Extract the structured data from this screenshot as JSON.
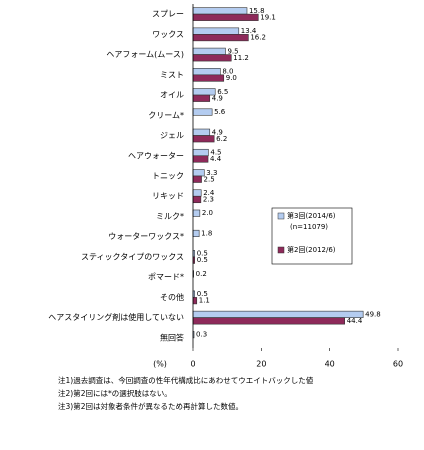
{
  "chart_data": {
    "type": "hbar",
    "categories": [
      "スプレー",
      "ワックス",
      "ヘアフォーム(ムース)",
      "ミスト",
      "オイル",
      "クリーム*",
      "ジェル",
      "ヘアウォーター",
      "トニック",
      "リキッド",
      "ミルク*",
      "ウォーターワックス*",
      "スティックタイプのワックス",
      "ポマード*",
      "その他",
      "ヘアスタイリング剤は使用していない",
      "無回答"
    ],
    "series": [
      {
        "name": "第3回(2014/6)",
        "note": "(n=11079)",
        "color": "#b4ccf0",
        "values": [
          15.8,
          13.4,
          9.5,
          8.0,
          6.5,
          5.6,
          4.9,
          4.5,
          3.3,
          2.4,
          2.0,
          1.8,
          0.5,
          0.2,
          0.5,
          49.8,
          0.3
        ],
        "value_labels": [
          "15.8",
          "13.4",
          "9.5",
          "8.0",
          "6.5",
          "5.6",
          "4.9",
          "4.5",
          "3.3",
          "2.4",
          "2.0",
          "1.8",
          "0.5",
          "0.2",
          "0.5",
          "49.8",
          "0.3"
        ]
      },
      {
        "name": "第2回(2012/6)",
        "color": "#8e2a5a",
        "values": [
          19.1,
          16.2,
          11.2,
          9.0,
          4.9,
          null,
          6.2,
          4.4,
          2.5,
          2.3,
          null,
          null,
          0.5,
          null,
          1.1,
          44.4,
          null
        ],
        "value_labels": [
          "19.1",
          "16.2",
          "11.2",
          "9.0",
          "4.9",
          null,
          "6.2",
          "4.4",
          "2.5",
          "2.3",
          null,
          null,
          "0.5",
          null,
          "1.1",
          "44.4",
          null
        ]
      }
    ],
    "xlabel": "(%)",
    "xlim": [
      0,
      60
    ],
    "xticks": [
      0,
      20,
      40,
      60
    ],
    "notes": [
      "注1)過去調査は、今回調査の性年代構成比にあわせてウエイトバックした値",
      "注2)第2回には*の選択肢はない。",
      "注3)第2回は対象者条件が異なるため再計算した数値。"
    ]
  }
}
